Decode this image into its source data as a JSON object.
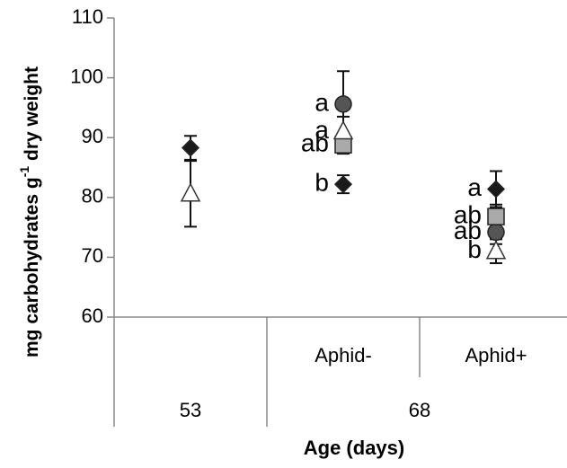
{
  "chart_data": {
    "type": "errorbar",
    "ylabel": [
      "mg carbohydrates g",
      "-1",
      " dry weight"
    ],
    "xlabel": "Age (days)",
    "categories": [
      null,
      "Aphid-",
      "Aphid+"
    ],
    "groups": [
      "53",
      "68"
    ],
    "group_sizes": [
      1,
      2
    ],
    "ylim": [
      60,
      110
    ],
    "yticks": [
      60,
      70,
      80,
      90,
      100,
      110
    ],
    "grid": false,
    "series": [
      {
        "marker": "diamond",
        "color": "#1a1a1a",
        "values": [
          88.3,
          82.2,
          81.4
        ],
        "errors": [
          2,
          1.5,
          3
        ],
        "annotations": [
          null,
          "b",
          "a"
        ]
      },
      {
        "marker": "circle",
        "color": "#555555",
        "values": [
          null,
          95.6,
          74.2
        ],
        "errors": [
          null,
          5.5,
          2
        ],
        "annotations": [
          null,
          "a",
          "ab"
        ]
      },
      {
        "marker": "square",
        "color": "#aaaaaa",
        "values": [
          null,
          88.8,
          76.8
        ],
        "errors": [
          null,
          1.5,
          2
        ],
        "annotations": [
          null,
          "ab",
          "ab"
        ]
      },
      {
        "marker": "triangle",
        "color": "#ffffff",
        "values": [
          80.6,
          91,
          71
        ],
        "errors": [
          5.5,
          2.5,
          2
        ],
        "annotations": [
          null,
          "a",
          "b"
        ]
      }
    ]
  }
}
